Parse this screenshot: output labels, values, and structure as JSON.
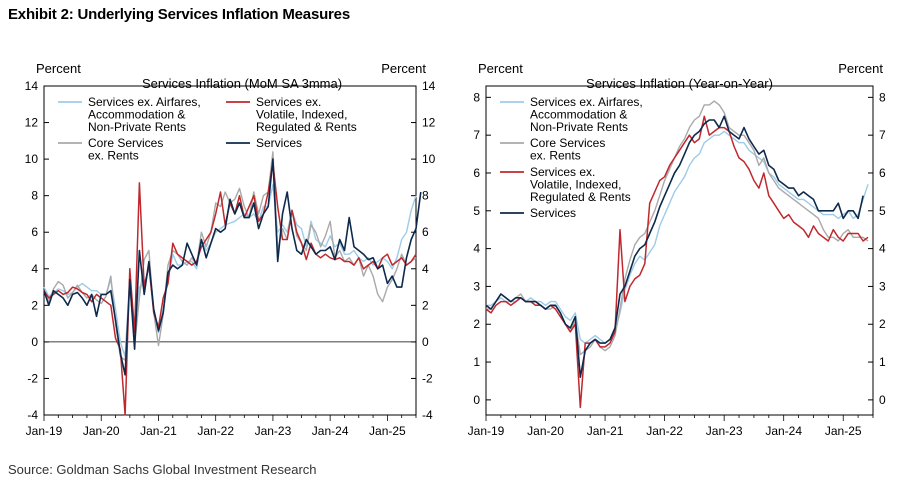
{
  "title": "Exhibit 2: Underlying Services Inflation Measures",
  "source": "Source: Goldman Sachs Global Investment Research",
  "colors": {
    "light_blue": "#9ecbe8",
    "grey": "#a9a9a9",
    "red": "#c0282d",
    "navy": "#0d2a4c"
  },
  "chart_data": [
    {
      "type": "line",
      "title": "Services Inflation (MoM SA 3mma)",
      "ylabel_left": "Percent",
      "ylabel_right": "Percent",
      "ylim": [
        -4,
        14
      ],
      "yticks": [
        -4,
        -2,
        0,
        2,
        4,
        6,
        8,
        10,
        12,
        14
      ],
      "xlim": [
        "2019-01",
        "2025-07"
      ],
      "xtick_labels": [
        "Jan-19",
        "Jan-20",
        "Jan-21",
        "Jan-22",
        "Jan-23",
        "Jan-24",
        "Jan-25"
      ],
      "xtick_dates": [
        "2019-01",
        "2020-01",
        "2021-01",
        "2022-01",
        "2023-01",
        "2024-01",
        "2025-01"
      ],
      "zero_line": true,
      "grid": false,
      "legend_position": "top",
      "series": [
        {
          "name": "Services ex. Airfares, Accommodation & Non-Private Rents",
          "color": "light_blue",
          "start": "2019-01",
          "values": [
            3.0,
            2.5,
            2.7,
            2.9,
            2.8,
            2.6,
            2.7,
            3.0,
            3.2,
            3.0,
            2.8,
            2.8,
            2.6,
            2.6,
            3.4,
            1.8,
            0.0,
            -0.8,
            3.6,
            0.8,
            3.0,
            3.2,
            4.0,
            1.8,
            0.5,
            1.8,
            3.4,
            4.8,
            4.2,
            4.2,
            4.4,
            4.4,
            4.0,
            5.6,
            5.0,
            5.4,
            6.0,
            6.2,
            6.4,
            6.5,
            6.6,
            6.8,
            7.0,
            6.8,
            7.0,
            6.6,
            7.4,
            7.4,
            8.6,
            6.0,
            6.4,
            6.0,
            7.2,
            6.4,
            6.2,
            5.2,
            6.6,
            5.6,
            5.4,
            5.2,
            5.8,
            5.2,
            5.4,
            4.8,
            4.8,
            5.0,
            4.6,
            4.4,
            4.6,
            4.2,
            4.4,
            4.6,
            4.4,
            4.0,
            4.6,
            5.6,
            6.0,
            7.2,
            8.0
          ]
        },
        {
          "name": "Core Services ex. Rents",
          "color": "grey",
          "start": "2019-01",
          "values": [
            2.8,
            2.2,
            2.9,
            3.3,
            3.1,
            2.4,
            2.7,
            3.1,
            2.7,
            2.4,
            2.6,
            2.3,
            2.1,
            2.5,
            3.6,
            1.0,
            -0.8,
            -1.0,
            3.2,
            -0.2,
            2.4,
            4.5,
            5.0,
            1.6,
            -0.2,
            1.5,
            4.2,
            5.0,
            4.8,
            4.4,
            4.2,
            4.6,
            4.2,
            6.0,
            5.2,
            6.0,
            7.6,
            7.4,
            8.2,
            7.6,
            7.8,
            8.4,
            7.4,
            6.8,
            8.2,
            7.0,
            8.0,
            8.2,
            10.4,
            5.0,
            6.2,
            5.6,
            7.2,
            5.8,
            5.4,
            5.0,
            6.4,
            6.0,
            5.2,
            5.8,
            6.6,
            4.6,
            5.0,
            4.4,
            4.6,
            4.2,
            4.6,
            3.6,
            4.2,
            3.6,
            2.6,
            2.2,
            3.0,
            3.4,
            4.0,
            4.8,
            4.2,
            4.4,
            4.6
          ]
        },
        {
          "name": "Services ex. Volatile, Indexed, Regulated & Rents",
          "color": "red",
          "start": "2019-01",
          "values": [
            2.8,
            2.4,
            2.6,
            2.8,
            2.6,
            2.7,
            3.0,
            2.9,
            2.7,
            2.6,
            2.2,
            2.6,
            2.4,
            2.2,
            2.0,
            0.2,
            -0.4,
            -4.0,
            4.0,
            0.5,
            8.7,
            3.0,
            4.2,
            1.6,
            0.8,
            2.4,
            3.2,
            5.4,
            4.8,
            4.6,
            4.4,
            4.2,
            4.4,
            5.2,
            5.6,
            6.0,
            7.0,
            8.2,
            6.4,
            7.6,
            7.0,
            8.0,
            6.8,
            7.4,
            8.0,
            6.6,
            7.0,
            8.2,
            9.8,
            7.4,
            5.6,
            5.6,
            7.2,
            6.0,
            5.4,
            4.5,
            5.4,
            4.8,
            4.6,
            4.8,
            4.6,
            4.5,
            4.6,
            4.4,
            4.4,
            4.2,
            4.6,
            4.0,
            4.2,
            4.4,
            4.0,
            4.6,
            4.8,
            4.2,
            4.4,
            4.6,
            4.2,
            4.4,
            4.8
          ]
        },
        {
          "name": "Services",
          "color": "navy",
          "start": "2019-01",
          "values": [
            2.8,
            2.0,
            2.8,
            2.6,
            2.4,
            2.0,
            2.6,
            2.7,
            2.4,
            2.0,
            2.6,
            1.4,
            2.6,
            2.6,
            2.8,
            1.2,
            -0.6,
            -1.8,
            3.4,
            -0.4,
            5.0,
            2.6,
            4.4,
            1.8,
            0.6,
            1.6,
            3.8,
            4.2,
            4.0,
            4.2,
            5.4,
            4.8,
            4.2,
            5.6,
            4.6,
            5.4,
            6.2,
            6.0,
            6.2,
            7.8,
            7.0,
            7.6,
            6.8,
            6.8,
            7.6,
            6.2,
            7.0,
            7.4,
            10.0,
            4.4,
            7.0,
            8.2,
            6.2,
            5.0,
            4.8,
            5.6,
            5.2,
            4.8,
            5.0,
            5.0,
            5.2,
            4.5,
            5.6,
            5.0,
            6.8,
            5.2,
            5.0,
            4.8,
            4.5,
            4.6,
            4.0,
            4.2,
            3.2,
            3.6,
            3.0,
            3.0,
            4.6,
            5.6,
            6.2,
            8.2
          ]
        }
      ]
    },
    {
      "type": "line",
      "title": "Services Inflation (Year-on-Year)",
      "ylabel_left": "Percent",
      "ylabel_right": "Percent",
      "ylim": [
        -0.4,
        8.3
      ],
      "yticks": [
        0,
        1,
        2,
        3,
        4,
        5,
        6,
        7,
        8
      ],
      "xlim": [
        "2019-01",
        "2025-07"
      ],
      "xtick_labels": [
        "Jan-19",
        "Jan-20",
        "Jan-21",
        "Jan-22",
        "Jan-23",
        "Jan-24",
        "Jan-25"
      ],
      "xtick_dates": [
        "2019-01",
        "2020-01",
        "2021-01",
        "2022-01",
        "2023-01",
        "2024-01",
        "2025-01"
      ],
      "zero_line": false,
      "grid": false,
      "legend_position": "top-left",
      "series": [
        {
          "name": "Services ex. Airfares, Accommodation & Non-Private Rents",
          "color": "light_blue",
          "start": "2019-01",
          "values": [
            2.5,
            2.5,
            2.6,
            2.7,
            2.6,
            2.6,
            2.6,
            2.7,
            2.6,
            2.7,
            2.6,
            2.6,
            2.5,
            2.6,
            2.6,
            2.4,
            2.2,
            2.1,
            2.3,
            1.6,
            1.5,
            1.6,
            1.7,
            1.6,
            1.5,
            1.6,
            1.8,
            2.3,
            2.9,
            3.3,
            3.6,
            3.8,
            3.7,
            3.9,
            4.1,
            4.6,
            4.9,
            5.2,
            5.5,
            5.7,
            5.9,
            6.2,
            6.4,
            6.5,
            6.8,
            6.9,
            7.0,
            7.0,
            7.1,
            7.0,
            6.9,
            6.8,
            6.8,
            6.6,
            6.5,
            6.4,
            6.3,
            6.0,
            5.9,
            5.7,
            5.6,
            5.5,
            5.4,
            5.3,
            5.3,
            5.2,
            5.1,
            5.0,
            4.9,
            4.9,
            4.9,
            4.8,
            4.9,
            5.0,
            4.8,
            4.9,
            5.3,
            5.7
          ]
        },
        {
          "name": "Core Services ex. Rents",
          "color": "grey",
          "start": "2019-01",
          "values": [
            2.4,
            2.4,
            2.6,
            2.8,
            2.7,
            2.6,
            2.7,
            2.8,
            2.6,
            2.6,
            2.5,
            2.5,
            2.4,
            2.4,
            2.5,
            2.3,
            2.0,
            1.8,
            2.1,
            1.2,
            1.3,
            1.4,
            1.6,
            1.4,
            1.3,
            1.4,
            1.7,
            2.4,
            3.2,
            3.7,
            4.1,
            4.3,
            4.4,
            4.7,
            5.0,
            5.4,
            5.8,
            6.1,
            6.4,
            6.7,
            6.9,
            7.2,
            7.4,
            7.5,
            7.8,
            7.8,
            7.9,
            7.8,
            7.6,
            7.2,
            7.1,
            7.0,
            7.0,
            6.8,
            6.6,
            6.2,
            6.4,
            6.0,
            5.8,
            5.6,
            5.5,
            5.4,
            5.3,
            5.2,
            5.1,
            5.0,
            4.9,
            4.8,
            4.5,
            4.3,
            4.3,
            4.2,
            4.4,
            4.5,
            4.3,
            4.3,
            4.3,
            4.2
          ]
        },
        {
          "name": "Services ex. Volatile, Indexed, Regulated & Rents",
          "color": "red",
          "start": "2019-01",
          "values": [
            2.4,
            2.3,
            2.5,
            2.6,
            2.6,
            2.5,
            2.6,
            2.7,
            2.6,
            2.6,
            2.5,
            2.5,
            2.4,
            2.5,
            2.4,
            2.2,
            2.0,
            1.8,
            2.0,
            -0.2,
            1.5,
            1.5,
            1.6,
            1.4,
            1.4,
            1.5,
            1.8,
            4.5,
            2.6,
            3.0,
            3.2,
            3.3,
            3.6,
            5.2,
            5.5,
            5.8,
            5.9,
            6.2,
            6.4,
            6.6,
            6.8,
            7.0,
            6.8,
            6.9,
            7.5,
            7.0,
            7.1,
            7.2,
            7.2,
            7.1,
            6.7,
            6.4,
            6.3,
            6.1,
            5.8,
            5.6,
            6.0,
            5.4,
            5.2,
            5.0,
            4.8,
            4.9,
            4.7,
            4.6,
            4.5,
            4.3,
            4.6,
            4.4,
            4.3,
            4.2,
            4.5,
            4.3,
            4.2,
            4.4,
            4.4,
            4.4,
            4.2,
            4.3
          ]
        },
        {
          "name": "Services",
          "color": "navy",
          "start": "2019-01",
          "values": [
            2.5,
            2.4,
            2.6,
            2.8,
            2.7,
            2.6,
            2.7,
            2.7,
            2.6,
            2.6,
            2.6,
            2.5,
            2.4,
            2.5,
            2.5,
            2.3,
            2.0,
            1.9,
            2.2,
            0.6,
            1.3,
            1.5,
            1.6,
            1.5,
            1.5,
            1.6,
            1.9,
            2.8,
            3.0,
            3.4,
            3.8,
            4.0,
            4.1,
            4.4,
            4.7,
            5.1,
            5.4,
            5.7,
            6.0,
            6.2,
            6.5,
            6.8,
            7.0,
            7.1,
            7.3,
            7.4,
            7.4,
            7.2,
            7.5,
            7.1,
            7.0,
            6.9,
            7.2,
            6.9,
            6.7,
            6.5,
            6.6,
            6.2,
            6.1,
            5.8,
            5.7,
            5.6,
            5.6,
            5.4,
            5.5,
            5.4,
            5.3,
            5.0,
            5.0,
            5.0,
            5.0,
            5.2,
            4.8,
            5.0,
            5.0,
            4.8,
            5.4
          ]
        }
      ]
    }
  ]
}
